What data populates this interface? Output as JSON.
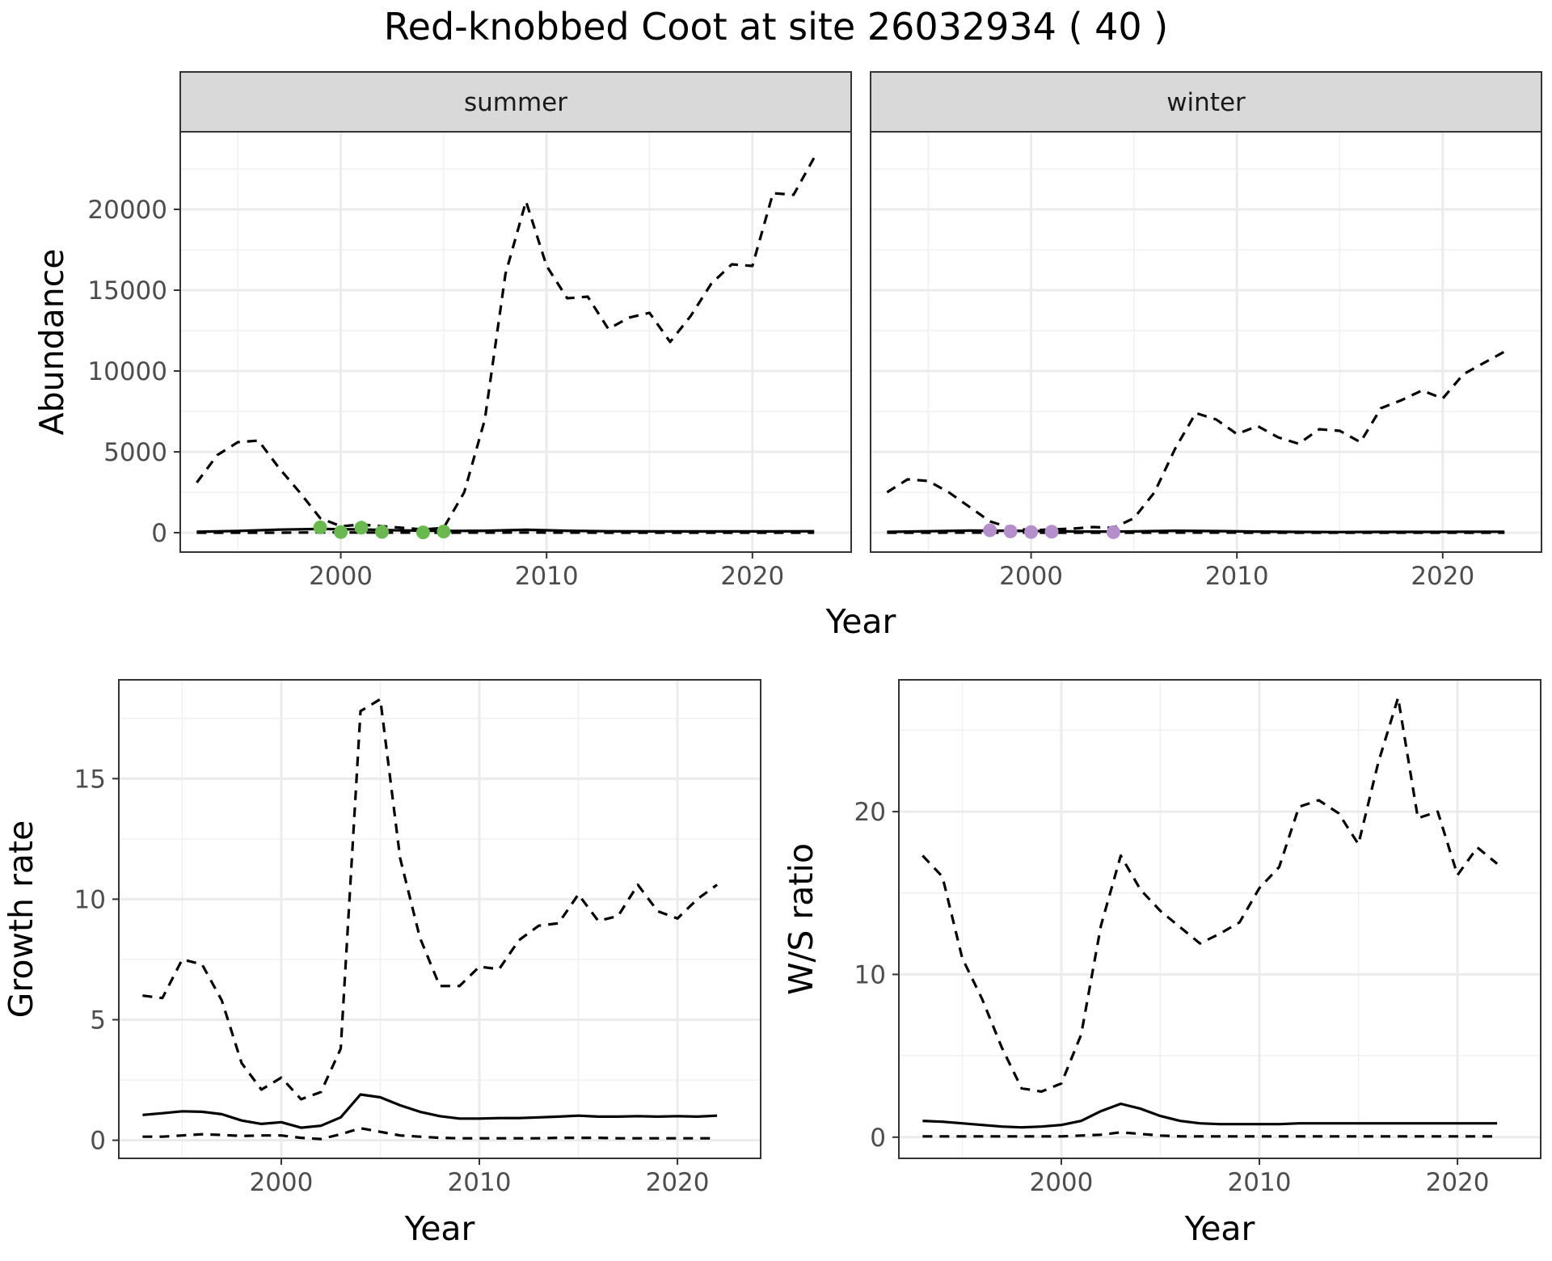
{
  "title": "Red-knobbed Coot at site 26032934 ( 40 )",
  "chart_data": [
    {
      "type": "line",
      "facet": "summer",
      "strip_label": "summer",
      "xlabel": "Year",
      "ylabel": "Abundance",
      "xlim": [
        1992.2,
        2024.8
      ],
      "ylim": [
        -1200,
        24800
      ],
      "xticks": [
        2000,
        2010,
        2020
      ],
      "yticks": [
        0,
        5000,
        10000,
        15000,
        20000
      ],
      "grid": true,
      "series": [
        {
          "style": "dashed",
          "role": "upper",
          "x": [
            1993,
            1994,
            1995,
            1996,
            1997,
            1998,
            1999,
            2000,
            2001,
            2002,
            2003,
            2004,
            2005,
            2006,
            2007,
            2008,
            2009,
            2010,
            2011,
            2012,
            2013,
            2014,
            2015,
            2016,
            2017,
            2018,
            2019,
            2020,
            2021,
            2022,
            2023
          ],
          "y": [
            3100,
            4800,
            5600,
            5700,
            4000,
            2500,
            900,
            400,
            500,
            400,
            300,
            200,
            300,
            2500,
            7000,
            16000,
            20500,
            16500,
            14500,
            14600,
            12600,
            13300,
            13600,
            11800,
            13400,
            15400,
            16600,
            16500,
            21000,
            20900,
            23200
          ]
        },
        {
          "style": "solid",
          "role": "estimate",
          "x": [
            1993,
            1995,
            1997,
            1999,
            2001,
            2003,
            2005,
            2007,
            2009,
            2011,
            2013,
            2015,
            2017,
            2019,
            2021,
            2023
          ],
          "y": [
            60,
            110,
            190,
            230,
            200,
            140,
            110,
            120,
            180,
            120,
            90,
            80,
            80,
            80,
            80,
            90
          ]
        },
        {
          "style": "dashed",
          "role": "lower",
          "x": [
            1993,
            1995,
            1997,
            1999,
            2001,
            2003,
            2005,
            2007,
            2009,
            2011,
            2013,
            2015,
            2017,
            2019,
            2021,
            2023
          ],
          "y": [
            0,
            0,
            0,
            20,
            10,
            5,
            0,
            5,
            10,
            5,
            0,
            0,
            0,
            0,
            0,
            0
          ]
        },
        {
          "style": "points",
          "role": "observed",
          "color": "#6ab850",
          "x": [
            1999,
            2000,
            2001,
            2002,
            2004,
            2005
          ],
          "y": [
            330,
            40,
            310,
            50,
            20,
            70
          ]
        }
      ]
    },
    {
      "type": "line",
      "facet": "winter",
      "strip_label": "winter",
      "xlabel": "Year",
      "xlim": [
        1992.2,
        2024.8
      ],
      "ylim": [
        -1200,
        24800
      ],
      "xticks": [
        2000,
        2010,
        2020
      ],
      "grid": true,
      "series": [
        {
          "style": "dashed",
          "role": "upper",
          "x": [
            1993,
            1994,
            1995,
            1996,
            1997,
            1998,
            1999,
            2000,
            2001,
            2002,
            2003,
            2004,
            2005,
            2006,
            2007,
            2008,
            2009,
            2010,
            2011,
            2012,
            2013,
            2014,
            2015,
            2016,
            2017,
            2018,
            2019,
            2020,
            2021,
            2022,
            2023
          ],
          "y": [
            2500,
            3300,
            3200,
            2500,
            1600,
            700,
            300,
            150,
            200,
            250,
            350,
            300,
            900,
            2500,
            5200,
            7400,
            7000,
            6100,
            6600,
            5900,
            5500,
            6400,
            6300,
            5600,
            7700,
            8200,
            8800,
            8300,
            9800,
            10500,
            11200
          ]
        },
        {
          "style": "solid",
          "role": "estimate",
          "x": [
            1993,
            1995,
            1997,
            1999,
            2001,
            2003,
            2005,
            2007,
            2009,
            2011,
            2013,
            2015,
            2017,
            2019,
            2021,
            2023
          ],
          "y": [
            50,
            90,
            130,
            120,
            90,
            70,
            80,
            120,
            100,
            70,
            50,
            40,
            50,
            50,
            60,
            60
          ]
        },
        {
          "style": "dashed",
          "role": "lower",
          "x": [
            1993,
            1995,
            1997,
            1999,
            2001,
            2003,
            2005,
            2007,
            2009,
            2011,
            2013,
            2015,
            2017,
            2019,
            2021,
            2023
          ],
          "y": [
            0,
            0,
            5,
            5,
            0,
            0,
            0,
            5,
            5,
            0,
            0,
            0,
            0,
            0,
            0,
            0
          ]
        },
        {
          "style": "points",
          "role": "observed",
          "color": "#b58fcb",
          "x": [
            1998,
            1999,
            2000,
            2001,
            2004
          ],
          "y": [
            150,
            80,
            40,
            60,
            30
          ]
        }
      ]
    },
    {
      "type": "line",
      "xlabel": "Year",
      "ylabel": "Growth rate",
      "xlim": [
        1991.8,
        2024.2
      ],
      "ylim": [
        -0.75,
        19.1
      ],
      "xticks": [
        2000,
        2010,
        2020
      ],
      "yticks": [
        0,
        5,
        10,
        15
      ],
      "grid": true,
      "series": [
        {
          "style": "dashed",
          "role": "upper",
          "x": [
            1993,
            1994,
            1995,
            1996,
            1997,
            1998,
            1999,
            2000,
            2001,
            2002,
            2003,
            2004,
            2005,
            2006,
            2007,
            2008,
            2009,
            2010,
            2011,
            2012,
            2013,
            2014,
            2015,
            2016,
            2017,
            2018,
            2019,
            2020,
            2021,
            2022
          ],
          "y": [
            6.0,
            5.9,
            7.5,
            7.3,
            5.8,
            3.2,
            2.1,
            2.6,
            1.7,
            2.0,
            3.8,
            17.8,
            18.3,
            11.7,
            8.4,
            6.4,
            6.4,
            7.2,
            7.1,
            8.3,
            8.9,
            9.0,
            10.2,
            9.1,
            9.3,
            10.6,
            9.5,
            9.2,
            10.0,
            10.6
          ]
        },
        {
          "style": "solid",
          "role": "estimate",
          "x": [
            1993,
            1994,
            1995,
            1996,
            1997,
            1998,
            1999,
            2000,
            2001,
            2002,
            2003,
            2004,
            2005,
            2006,
            2007,
            2008,
            2009,
            2010,
            2011,
            2012,
            2013,
            2014,
            2015,
            2016,
            2017,
            2018,
            2019,
            2020,
            2021,
            2022
          ],
          "y": [
            1.05,
            1.12,
            1.2,
            1.18,
            1.08,
            0.82,
            0.68,
            0.75,
            0.52,
            0.6,
            0.95,
            1.9,
            1.78,
            1.45,
            1.18,
            1.0,
            0.9,
            0.9,
            0.92,
            0.92,
            0.95,
            0.98,
            1.02,
            0.98,
            0.98,
            1.0,
            0.98,
            1.0,
            0.98,
            1.02
          ]
        },
        {
          "style": "dashed",
          "role": "lower",
          "x": [
            1993,
            1994,
            1995,
            1996,
            1997,
            1998,
            1999,
            2000,
            2001,
            2002,
            2003,
            2004,
            2005,
            2006,
            2007,
            2008,
            2009,
            2010,
            2011,
            2012,
            2013,
            2014,
            2015,
            2016,
            2017,
            2018,
            2019,
            2020,
            2021,
            2022
          ],
          "y": [
            0.15,
            0.15,
            0.2,
            0.25,
            0.22,
            0.18,
            0.2,
            0.2,
            0.1,
            0.05,
            0.25,
            0.5,
            0.35,
            0.2,
            0.15,
            0.1,
            0.08,
            0.08,
            0.08,
            0.08,
            0.08,
            0.1,
            0.1,
            0.1,
            0.08,
            0.08,
            0.08,
            0.08,
            0.08,
            0.08
          ]
        }
      ]
    },
    {
      "type": "line",
      "xlabel": "Year",
      "ylabel": "W/S ratio",
      "xlim": [
        1991.8,
        2024.2
      ],
      "ylim": [
        -1.3,
        28.1
      ],
      "xticks": [
        2000,
        2010,
        2020
      ],
      "yticks": [
        0,
        10,
        20
      ],
      "grid": true,
      "series": [
        {
          "style": "dashed",
          "role": "upper",
          "x": [
            1993,
            1994,
            1995,
            1996,
            1997,
            1998,
            1999,
            2000,
            2001,
            2002,
            2003,
            2004,
            2005,
            2006,
            2007,
            2008,
            2009,
            2010,
            2011,
            2012,
            2013,
            2014,
            2015,
            2016,
            2017,
            2018,
            2019,
            2020,
            2021,
            2022
          ],
          "y": [
            17.3,
            16.0,
            11.0,
            8.5,
            5.5,
            3.0,
            2.8,
            3.3,
            6.3,
            13.0,
            17.3,
            15.2,
            13.9,
            12.9,
            11.9,
            12.5,
            13.2,
            15.3,
            16.6,
            20.3,
            20.7,
            19.9,
            18.0,
            23.0,
            27.0,
            19.6,
            20.0,
            16.1,
            17.8,
            16.8
          ]
        },
        {
          "style": "solid",
          "role": "estimate",
          "x": [
            1993,
            1994,
            1995,
            1996,
            1997,
            1998,
            1999,
            2000,
            2001,
            2002,
            2003,
            2004,
            2005,
            2006,
            2007,
            2008,
            2009,
            2010,
            2011,
            2012,
            2013,
            2014,
            2015,
            2016,
            2017,
            2018,
            2019,
            2020,
            2021,
            2022
          ],
          "y": [
            1.0,
            0.95,
            0.85,
            0.75,
            0.65,
            0.6,
            0.65,
            0.75,
            1.0,
            1.6,
            2.05,
            1.75,
            1.3,
            1.0,
            0.85,
            0.8,
            0.8,
            0.8,
            0.8,
            0.85,
            0.85,
            0.85,
            0.85,
            0.85,
            0.85,
            0.85,
            0.85,
            0.85,
            0.85,
            0.85
          ]
        },
        {
          "style": "dashed",
          "role": "lower",
          "x": [
            1993,
            1994,
            1995,
            1996,
            1997,
            1998,
            1999,
            2000,
            2001,
            2002,
            2003,
            2004,
            2005,
            2006,
            2007,
            2008,
            2009,
            2010,
            2011,
            2012,
            2013,
            2014,
            2015,
            2016,
            2017,
            2018,
            2019,
            2020,
            2021,
            2022
          ],
          "y": [
            0.05,
            0.05,
            0.05,
            0.05,
            0.05,
            0.05,
            0.05,
            0.05,
            0.1,
            0.15,
            0.3,
            0.2,
            0.1,
            0.05,
            0.05,
            0.05,
            0.05,
            0.05,
            0.05,
            0.05,
            0.05,
            0.05,
            0.05,
            0.05,
            0.05,
            0.05,
            0.05,
            0.05,
            0.05,
            0.05
          ]
        }
      ]
    }
  ]
}
